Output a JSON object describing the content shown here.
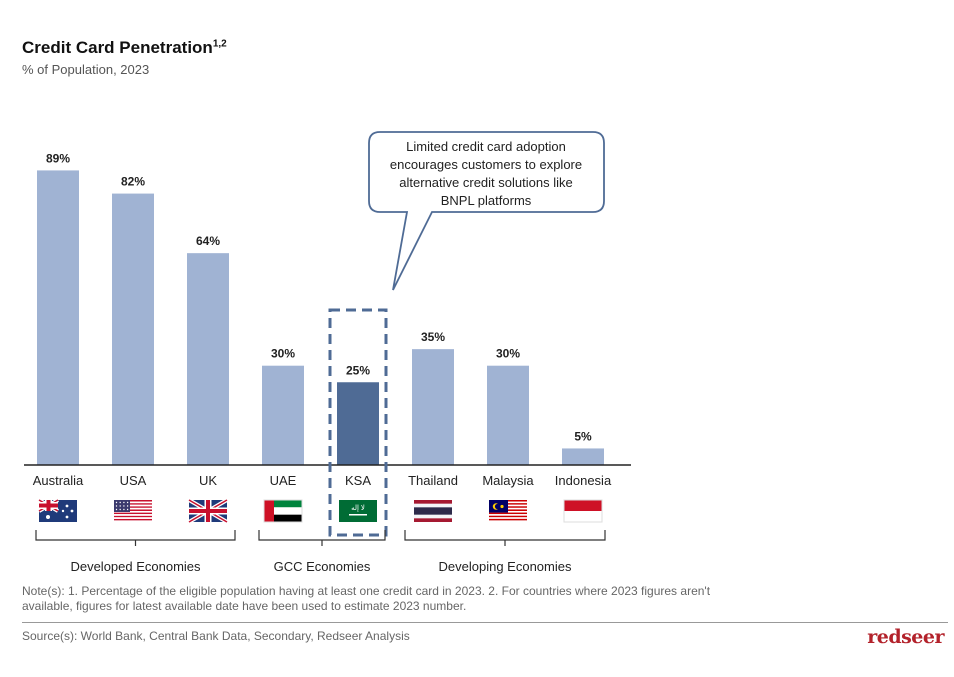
{
  "header": {
    "title": "Credit Card Penetration",
    "title_superscript": "1,2",
    "subtitle": "% of Population, 2023"
  },
  "chart_data": {
    "type": "bar",
    "title": "Credit Card Penetration",
    "subtitle": "% of Population, 2023",
    "unit": "%",
    "ylim": [
      0,
      100
    ],
    "grid": false,
    "categories": [
      "Australia",
      "USA",
      "UK",
      "UAE",
      "KSA",
      "Thailand",
      "Malaysia",
      "Indonesia"
    ],
    "values": [
      89,
      82,
      64,
      30,
      25,
      35,
      30,
      5
    ],
    "labels": [
      "89%",
      "82%",
      "64%",
      "30%",
      "25%",
      "35%",
      "30%",
      "5%"
    ],
    "highlight": "KSA",
    "groups": [
      {
        "name": "Developed Economies",
        "members": [
          "Australia",
          "USA",
          "UK"
        ]
      },
      {
        "name": "GCC Economies",
        "members": [
          "UAE",
          "KSA"
        ]
      },
      {
        "name": "Developing Economies",
        "members": [
          "Thailand",
          "Malaysia",
          "Indonesia"
        ]
      }
    ],
    "callout": "Limited credit card adoption encourages customers to explore alternative credit solutions like BNPL platforms",
    "callout_lines": [
      "Limited credit card adoption",
      "encourages customers to explore",
      "alternative credit solutions like",
      "BNPL platforms"
    ]
  },
  "colors": {
    "bar": "#a0b3d3",
    "bar_highlight": "#4f6b95",
    "highlight_border": "#4f6b95",
    "callout_border": "#4f6b95",
    "logo": "#b3222b"
  },
  "footer": {
    "note": "Note(s): 1. Percentage of the eligible population having at least one credit card in 2023. 2. For countries where 2023 figures aren't available, figures for latest available date have been used to estimate 2023 number.",
    "source": "Source(s): World Bank, Central Bank Data, Secondary, Redseer Analysis",
    "logo": "redseer"
  }
}
